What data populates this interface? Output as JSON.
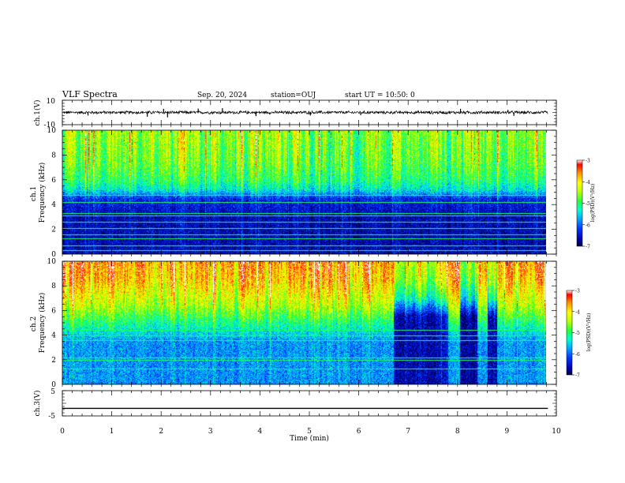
{
  "header": {
    "title": "VLF Spectra",
    "date": "Sep. 20, 2024",
    "station": "station=OUJ",
    "start": "start UT =  10:50: 0"
  },
  "chart_data": [
    {
      "type": "line",
      "name": "ch1-waveform",
      "ylabel": "ch.1(V)",
      "ylim": [
        -10,
        10
      ],
      "yticks": [
        "10",
        "-10"
      ],
      "xlim": [
        0,
        10
      ],
      "x_end": 9.83,
      "baseline": 0,
      "noise_amplitude": 1.2,
      "spikes": [
        {
          "x": 0.52,
          "y": -2.5
        },
        {
          "x": 1.72,
          "y": -3.5
        },
        {
          "x": 2.05,
          "y": 3.0
        },
        {
          "x": 2.13,
          "y": -4.0
        },
        {
          "x": 2.75,
          "y": 3.2
        },
        {
          "x": 3.24,
          "y": 3.5
        },
        {
          "x": 3.92,
          "y": -3.0
        },
        {
          "x": 5.02,
          "y": -2.5
        },
        {
          "x": 6.04,
          "y": -2.2
        },
        {
          "x": 8.06,
          "y": 3.0
        },
        {
          "x": 9.02,
          "y": 2.2
        },
        {
          "x": 9.14,
          "y": -2.8
        }
      ]
    },
    {
      "type": "heatmap",
      "name": "ch1-spectrogram",
      "ylabel": "ch.1\nFrequency (kHz)",
      "ylim": [
        0,
        10
      ],
      "yticks": [
        "0",
        "2",
        "4",
        "6",
        "8",
        "10"
      ],
      "xlim": [
        0,
        10
      ],
      "x_end": 9.83,
      "log_psd_range": [
        -7,
        -3
      ],
      "profile": [
        {
          "f": 0.0,
          "v": -6.6
        },
        {
          "f": 3.0,
          "v": -6.6
        },
        {
          "f": 4.5,
          "v": -6.3
        },
        {
          "f": 5.2,
          "v": -5.4
        },
        {
          "f": 6.0,
          "v": -5.0
        },
        {
          "f": 7.5,
          "v": -4.7
        },
        {
          "f": 10.0,
          "v": -4.5
        }
      ],
      "lines_khz": [
        0.3,
        0.7,
        1.3,
        1.6,
        2.1,
        2.6,
        3.1,
        3.3,
        4.2,
        4.8
      ]
    },
    {
      "type": "heatmap",
      "name": "ch2-spectrogram",
      "ylabel": "ch.2\nFrequency (kHz)",
      "ylim": [
        0,
        10
      ],
      "yticks": [
        "0",
        "2",
        "4",
        "6",
        "8",
        "10"
      ],
      "xlim": [
        0,
        10
      ],
      "x_end": 9.83,
      "log_psd_range": [
        -7,
        -3
      ],
      "profile": [
        {
          "f": 0.0,
          "v": -5.8
        },
        {
          "f": 3.5,
          "v": -5.8
        },
        {
          "f": 5.0,
          "v": -5.1
        },
        {
          "f": 6.5,
          "v": -4.4
        },
        {
          "f": 8.5,
          "v": -3.8
        },
        {
          "f": 10.0,
          "v": -3.6
        }
      ],
      "quiet_intervals": [
        [
          6.7,
          7.8
        ],
        [
          8.05,
          8.4
        ],
        [
          8.6,
          8.8
        ]
      ],
      "quiet_profile": [
        {
          "f": 0.0,
          "v": -6.6
        },
        {
          "f": 5.5,
          "v": -6.6
        },
        {
          "f": 7.0,
          "v": -5.2
        },
        {
          "f": 8.5,
          "v": -4.5
        },
        {
          "f": 10.0,
          "v": -4.2
        }
      ],
      "lines_khz": [
        1.3,
        2.0,
        2.2,
        3.6,
        4.0,
        4.4
      ]
    },
    {
      "type": "line",
      "name": "ch3-waveform",
      "ylabel": "ch.3(V)",
      "ylim": [
        -5,
        5
      ],
      "yticks": [
        "5",
        "-5"
      ],
      "xlim": [
        0,
        10
      ],
      "x_end": 9.83,
      "baseline": -2.0,
      "xlabel": "Time (min)",
      "xticks": [
        "0",
        "1",
        "2",
        "3",
        "4",
        "5",
        "6",
        "7",
        "8",
        "9",
        "10"
      ]
    }
  ],
  "colorbar": {
    "label": "log(PSD)(V²/Hz)",
    "ticks": [
      "-3",
      "-4",
      "-5",
      "-6",
      "-7"
    ],
    "range": [
      -7,
      -3
    ]
  }
}
